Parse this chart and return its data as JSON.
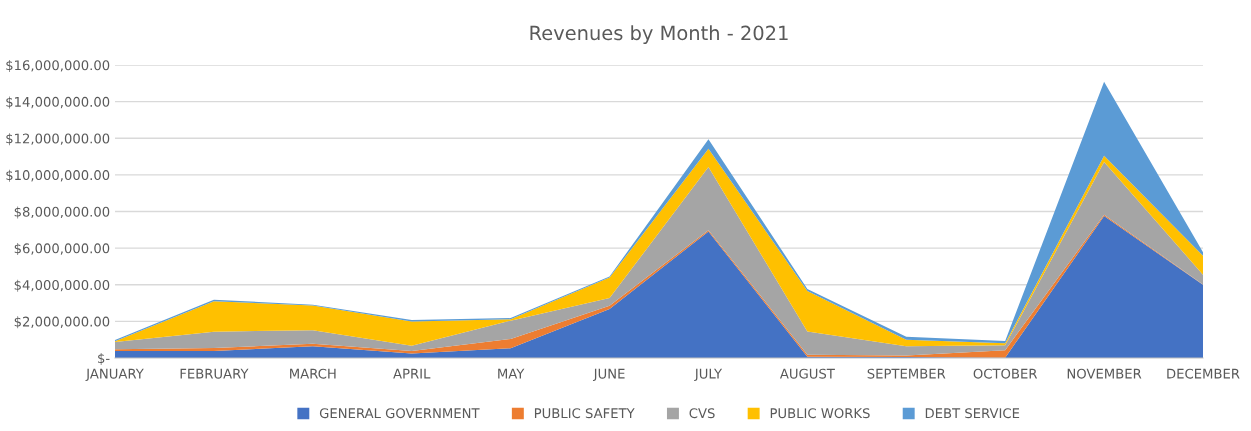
{
  "chart_data": {
    "type": "area",
    "stacked": true,
    "title": "Revenues by Month - 2021",
    "categories": [
      "JANUARY",
      "FEBRUARY",
      "MARCH",
      "APRIL",
      "MAY",
      "JUNE",
      "JULY",
      "AUGUST",
      "SEPTEMBER",
      "OCTOBER",
      "NOVEMBER",
      "DECEMBER"
    ],
    "series": [
      {
        "name": "GENERAL GOVERNMENT",
        "color": "#4472c4",
        "values": [
          380000,
          380000,
          640000,
          240000,
          530000,
          2680000,
          6910000,
          70000,
          50000,
          20000,
          7750000,
          4000000
        ]
      },
      {
        "name": "PUBLIC SAFETY",
        "color": "#ed7d31",
        "values": [
          100000,
          170000,
          140000,
          140000,
          510000,
          180000,
          70000,
          110000,
          90000,
          410000,
          70000,
          20000
        ]
      },
      {
        "name": "CVS",
        "color": "#a5a5a5",
        "values": [
          400000,
          890000,
          730000,
          290000,
          1000000,
          410000,
          3450000,
          1270000,
          500000,
          270000,
          2880000,
          530000
        ]
      },
      {
        "name": "PUBLIC WORKS",
        "color": "#ffc000",
        "values": [
          30000,
          1660000,
          1360000,
          1330000,
          70000,
          1120000,
          1000000,
          2210000,
          360000,
          100000,
          350000,
          1040000
        ]
      },
      {
        "name": "DEBT SERVICE",
        "color": "#5b9bd5",
        "values": [
          70000,
          80000,
          40000,
          70000,
          70000,
          60000,
          520000,
          110000,
          160000,
          130000,
          4040000,
          180000
        ]
      }
    ],
    "ylim": [
      0,
      16000000
    ],
    "yticks": [
      {
        "value": 0,
        "label": "$-"
      },
      {
        "value": 2000000,
        "label": "$2,000,000.00"
      },
      {
        "value": 4000000,
        "label": "$4,000,000.00"
      },
      {
        "value": 6000000,
        "label": "$6,000,000.00"
      },
      {
        "value": 8000000,
        "label": "$8,000,000.00"
      },
      {
        "value": 10000000,
        "label": "$10,000,000.00"
      },
      {
        "value": 12000000,
        "label": "$12,000,000.00"
      },
      {
        "value": 14000000,
        "label": "$14,000,000.00"
      },
      {
        "value": 16000000,
        "label": "$16,000,000.00"
      }
    ],
    "grid": "y",
    "legend": "bottom"
  }
}
